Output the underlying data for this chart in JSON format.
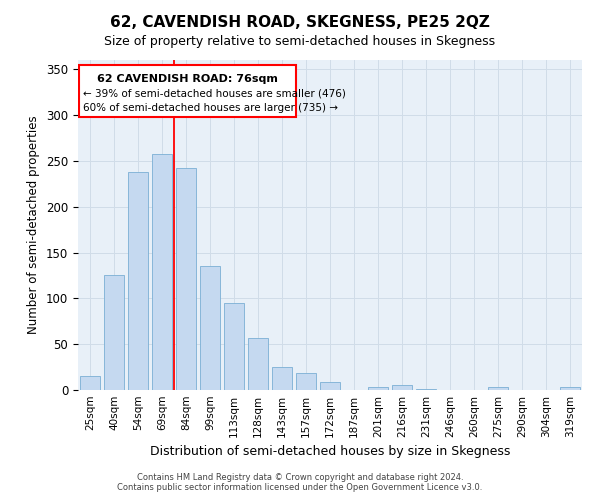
{
  "title": "62, CAVENDISH ROAD, SKEGNESS, PE25 2QZ",
  "subtitle": "Size of property relative to semi-detached houses in Skegness",
  "xlabel": "Distribution of semi-detached houses by size in Skegness",
  "ylabel": "Number of semi-detached properties",
  "categories": [
    "25sqm",
    "40sqm",
    "54sqm",
    "69sqm",
    "84sqm",
    "99sqm",
    "113sqm",
    "128sqm",
    "143sqm",
    "157sqm",
    "172sqm",
    "187sqm",
    "201sqm",
    "216sqm",
    "231sqm",
    "246sqm",
    "260sqm",
    "275sqm",
    "290sqm",
    "304sqm",
    "319sqm"
  ],
  "values": [
    15,
    125,
    238,
    257,
    242,
    135,
    95,
    57,
    25,
    19,
    9,
    0,
    3,
    5,
    1,
    0,
    0,
    3,
    0,
    0,
    3
  ],
  "bar_color": "#c5d9f0",
  "bar_edge_color": "#7bafd4",
  "annotation_line1": "62 CAVENDISH ROAD: 76sqm",
  "annotation_line2": "← 39% of semi-detached houses are smaller (476)",
  "annotation_line3": "60% of semi-detached houses are larger (735) →",
  "ylim": [
    0,
    360
  ],
  "yticks": [
    0,
    50,
    100,
    150,
    200,
    250,
    300,
    350
  ],
  "grid_color": "#d0dce8",
  "background_color": "#e8f0f8",
  "footer1": "Contains HM Land Registry data © Crown copyright and database right 2024.",
  "footer2": "Contains public sector information licensed under the Open Government Licence v3.0.",
  "title_fontsize": 11,
  "subtitle_fontsize": 9
}
